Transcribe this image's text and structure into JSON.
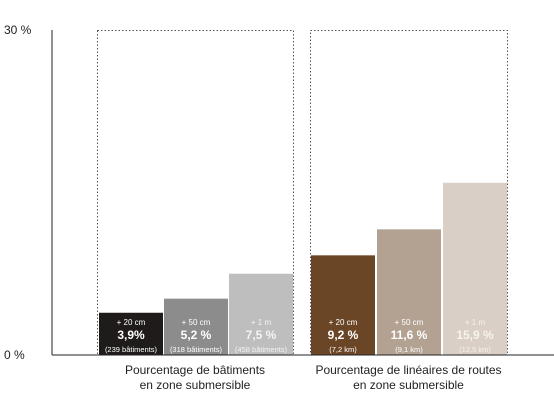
{
  "chart_data": {
    "type": "bar",
    "ylim": [
      0,
      30
    ],
    "y_ticks": [
      {
        "value": 0,
        "label": "0 %"
      },
      {
        "value": 30,
        "label": "30 %"
      }
    ],
    "grid": false,
    "groups": [
      {
        "label_lines": [
          "Pourcentage de bâtiments",
          "en zone submersible"
        ],
        "bars": [
          {
            "value": 3.9,
            "top_label": "+ 20 cm",
            "value_label": "3,9%",
            "sub_label": "(239 bâtiments)",
            "color": "#1f1b1b",
            "text_color": "#ffffff"
          },
          {
            "value": 5.2,
            "top_label": "+ 50 cm",
            "value_label": "5,2 %",
            "sub_label": "(318 bâtiments)",
            "color": "#8c8c8c",
            "text_color": "#ffffff"
          },
          {
            "value": 7.5,
            "top_label": "+ 1 m",
            "value_label": "7,5 %",
            "sub_label": "(458 bâtiments)",
            "color": "#bebebe",
            "text_color": "#f4f4f4"
          }
        ]
      },
      {
        "label_lines": [
          "Pourcentage de linéaires de routes",
          "en zone submersible"
        ],
        "bars": [
          {
            "value": 9.2,
            "top_label": "+ 20 cm",
            "value_label": "9,2 %",
            "sub_label": "(7,2 km)",
            "color": "#6b4626",
            "text_color": "#ffffff"
          },
          {
            "value": 11.6,
            "top_label": "+ 50 cm",
            "value_label": "11,6 %",
            "sub_label": "(9,1 km)",
            "color": "#b3a292",
            "text_color": "#ffffff"
          },
          {
            "value": 15.9,
            "top_label": "+ 1 m",
            "value_label": "15,9 %",
            "sub_label": "(12,5 km)",
            "color": "#d9cfc6",
            "text_color": "#f7f3ef"
          }
        ]
      }
    ]
  }
}
